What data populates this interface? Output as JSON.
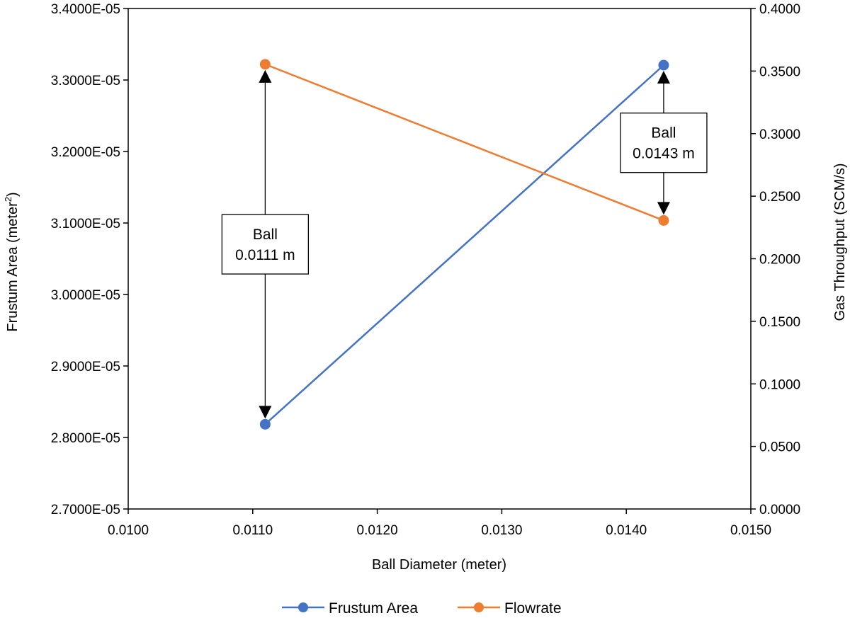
{
  "chart_data": {
    "type": "line",
    "xlabel": "Ball Diameter (meter)",
    "ylabel_left": "Frustum Area (meter",
    "ylabel_left_sup": "2",
    "ylabel_left_close": ")",
    "ylabel_right": "Gas Throughput (SCM/s)",
    "xlim": [
      0.01,
      0.015
    ],
    "x_ticks": [
      "0.0100",
      "0.0110",
      "0.0120",
      "0.0130",
      "0.0140",
      "0.0150"
    ],
    "y_left_lim": [
      2.7e-05,
      3.4e-05
    ],
    "y_left_ticks": [
      "2.7000E-05",
      "2.8000E-05",
      "2.9000E-05",
      "3.0000E-05",
      "3.1000E-05",
      "3.2000E-05",
      "3.3000E-05",
      "3.4000E-05"
    ],
    "y_right_lim": [
      0.0,
      0.4
    ],
    "y_right_ticks": [
      "0.0000",
      "0.0500",
      "0.1000",
      "0.1500",
      "0.2000",
      "0.2500",
      "0.3000",
      "0.3500",
      "0.4000"
    ],
    "grid": false,
    "legend_position": "bottom",
    "series": [
      {
        "name": "Frustum Area",
        "axis": "left",
        "color": "#4472C4",
        "x": [
          0.0111,
          0.0143
        ],
        "y": [
          2.8185e-05,
          3.3208e-05
        ]
      },
      {
        "name": "Flowrate",
        "axis": "right",
        "color": "#ED7D31",
        "x": [
          0.0111,
          0.0143
        ],
        "y": [
          0.3554,
          0.2306
        ]
      }
    ],
    "annotations": [
      {
        "line1": "Ball",
        "line2": "0.0111 m",
        "x": 0.0111
      },
      {
        "line1": "Ball",
        "line2": "0.0143 m",
        "x": 0.0143
      }
    ]
  }
}
